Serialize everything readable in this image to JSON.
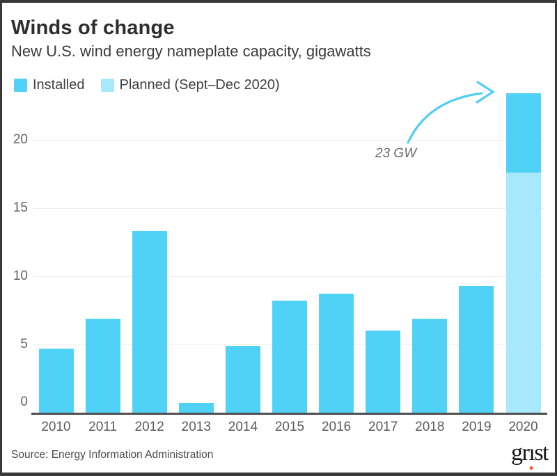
{
  "frame": {
    "border_color": "#383838",
    "background": "#ffffff"
  },
  "header": {
    "title": "Winds of change",
    "subtitle": "New U.S. wind energy nameplate capacity, gigawatts"
  },
  "legend": {
    "items": [
      {
        "label": "Installed",
        "color": "#50D2F7"
      },
      {
        "label": "Planned (Sept–Dec 2020)",
        "color": "#A8E8FC"
      }
    ]
  },
  "annotation": {
    "text": "23 GW",
    "arrow_color": "#55CDF3"
  },
  "footer": {
    "source": "Source: Energy Information Administration",
    "logo": {
      "pre": "gr",
      "i_char": "ı",
      "post": "st",
      "dot_color": "#f15b22"
    }
  },
  "chart_data": {
    "type": "bar",
    "stacked": true,
    "title": "Winds of change",
    "subtitle": "New U.S. wind energy nameplate capacity, gigawatts",
    "unit": "gigawatts (GW)",
    "categories": [
      "2010",
      "2011",
      "2012",
      "2013",
      "2014",
      "2015",
      "2016",
      "2017",
      "2018",
      "2019",
      "2020"
    ],
    "series": [
      {
        "name": "Installed",
        "color": "#50D2F7",
        "values": [
          4.7,
          6.9,
          13.3,
          0.7,
          4.9,
          8.2,
          8.7,
          6.0,
          6.9,
          9.3,
          5.8
        ]
      },
      {
        "name": "Planned (Sept–Dec 2020)",
        "color": "#A8E8FC",
        "values": [
          0,
          0,
          0,
          0,
          0,
          0,
          0,
          0,
          0,
          0,
          17.6
        ]
      }
    ],
    "stack_order_bottom_to_top": [
      "Planned (Sept–Dec 2020)",
      "Installed"
    ],
    "stack_note": "Only 2020 is stacked: the light 'Planned' segment (17.6 GW) is drawn at the bottom with the dark 'Installed' segment (5.8 GW) on top; total ≈ 23 GW.",
    "annotation": {
      "text": "23 GW",
      "applies_to": "2020"
    },
    "yticks": [
      0,
      5,
      10,
      15,
      20
    ],
    "ylim": [
      0,
      24.2
    ],
    "grid": "horizontal",
    "legend_position": "top-left",
    "xlabel": "",
    "ylabel": ""
  }
}
